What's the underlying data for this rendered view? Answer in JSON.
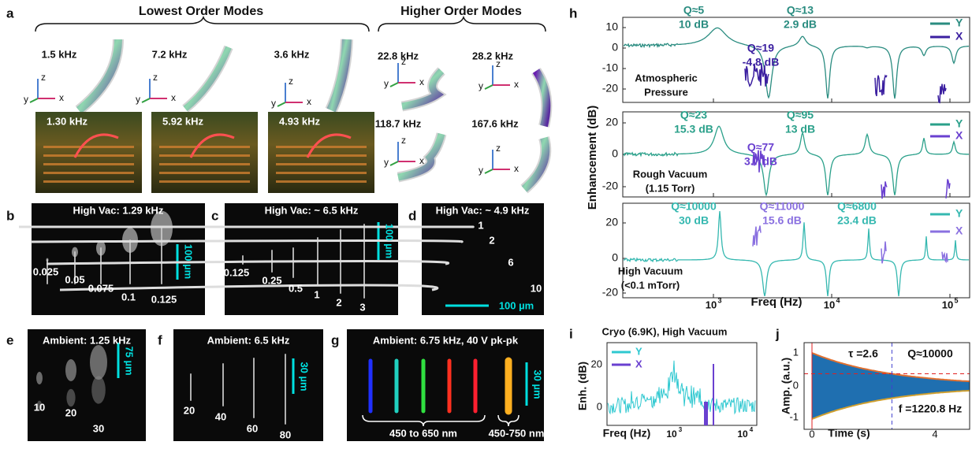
{
  "panel_a": {
    "label": "a",
    "lowest_title": "Lowest Order Modes",
    "higher_title": "Higher Order Modes",
    "lowest_modes": [
      "1.5 kHz",
      "7.2 kHz",
      "3.6 kHz"
    ],
    "higher_modes": [
      "22.8 kHz",
      "28.2 kHz",
      "118.7 kHz",
      "167.6 kHz"
    ],
    "photo_labels": [
      "1.30 kHz",
      "5.92 kHz",
      "4.93 kHz"
    ],
    "axis_labels": [
      "x",
      "y",
      "z"
    ]
  },
  "panel_b": {
    "label": "b",
    "title": "High Vac: 1.29 kHz",
    "tags": [
      "0.025",
      "0.05",
      "0.075",
      "0.1",
      "0.125"
    ],
    "scale": "100 µm"
  },
  "panel_c": {
    "label": "c",
    "title": "High Vac: ~ 6.5 kHz",
    "tags": [
      "0.125",
      "0.25",
      "0.5",
      "1",
      "2",
      "3"
    ],
    "scale": "100 µm"
  },
  "panel_d": {
    "label": "d",
    "title": "High Vac: ~ 4.9 kHz",
    "tags": [
      "1",
      "2",
      "6",
      "10"
    ],
    "scale": "100 µm"
  },
  "panel_e": {
    "label": "e",
    "title": "Ambient: 1.25 kHz",
    "tags": [
      "10",
      "20",
      "30"
    ],
    "scale": "75 µm"
  },
  "panel_f": {
    "label": "f",
    "title": "Ambient: 6.5 kHz",
    "tags": [
      "20",
      "40",
      "60",
      "80"
    ],
    "scale": "30 µm"
  },
  "panel_g": {
    "label": "g",
    "title": "Ambient: 6.75 kHz, 40 V pk-pk",
    "range_1": "450 to 650 nm",
    "range_2": "450-750 nm",
    "scale": "30 µm"
  },
  "panel_h": {
    "label": "h",
    "y_label": "Enhancement (dB)",
    "x_label": "Freq (Hz)",
    "x_ticks": [
      {
        "base": "10",
        "exp": "3"
      },
      {
        "base": "10",
        "exp": "4"
      },
      {
        "base": "10",
        "exp": "5"
      }
    ],
    "subplots": [
      {
        "yticks": [
          "10",
          "0",
          "-10",
          "-20"
        ],
        "condition": [
          "Atmospheric",
          "Pressure"
        ],
        "legend": [
          "Y",
          "X"
        ],
        "annotations": [
          [
            "Q≈5",
            "10 dB"
          ],
          [
            "Q≈13",
            "2.9 dB"
          ],
          [
            "Q≈19",
            "-4.8 dB"
          ]
        ]
      },
      {
        "yticks": [
          "20",
          "0",
          "-20"
        ],
        "condition": [
          "Rough Vacuum",
          "(1.15 Torr)"
        ],
        "legend": [
          "Y",
          "X"
        ],
        "annotations": [
          [
            "Q≈23",
            "15.3 dB"
          ],
          [
            "Q≈95",
            "13 dB"
          ],
          [
            "Q≈77",
            "3.7 dB"
          ]
        ]
      },
      {
        "yticks": [
          "20",
          "0",
          "-20"
        ],
        "condition": [
          "High Vacuum",
          "(<0.1 mTorr)"
        ],
        "legend": [
          "Y",
          "X"
        ],
        "annotations": [
          [
            "Q≈10000",
            "30 dB"
          ],
          [
            "Q≈11000",
            "15.6 dB"
          ],
          [
            "Q≈6800",
            "23.4 dB"
          ]
        ]
      }
    ]
  },
  "panel_i": {
    "label": "i",
    "title": "Cryo (6.9K), High Vacuum",
    "y_label": "Enh. (dB)",
    "x_label": "Freq (Hz)",
    "yticks": [
      "20",
      "0"
    ],
    "x_ticks": [
      {
        "base": "10",
        "exp": "3"
      },
      {
        "base": "10",
        "exp": "4"
      }
    ],
    "legend": [
      "Y",
      "X"
    ]
  },
  "panel_j": {
    "label": "j",
    "y_label": "Amp. (a.u.)",
    "x_label": "Time (s)",
    "yticks": [
      "1",
      "0",
      "-1"
    ],
    "xticks": [
      "0",
      "4"
    ],
    "tau": "τ =2.6",
    "q": "Q≈10000",
    "f": "f =1220.8 Hz"
  }
}
